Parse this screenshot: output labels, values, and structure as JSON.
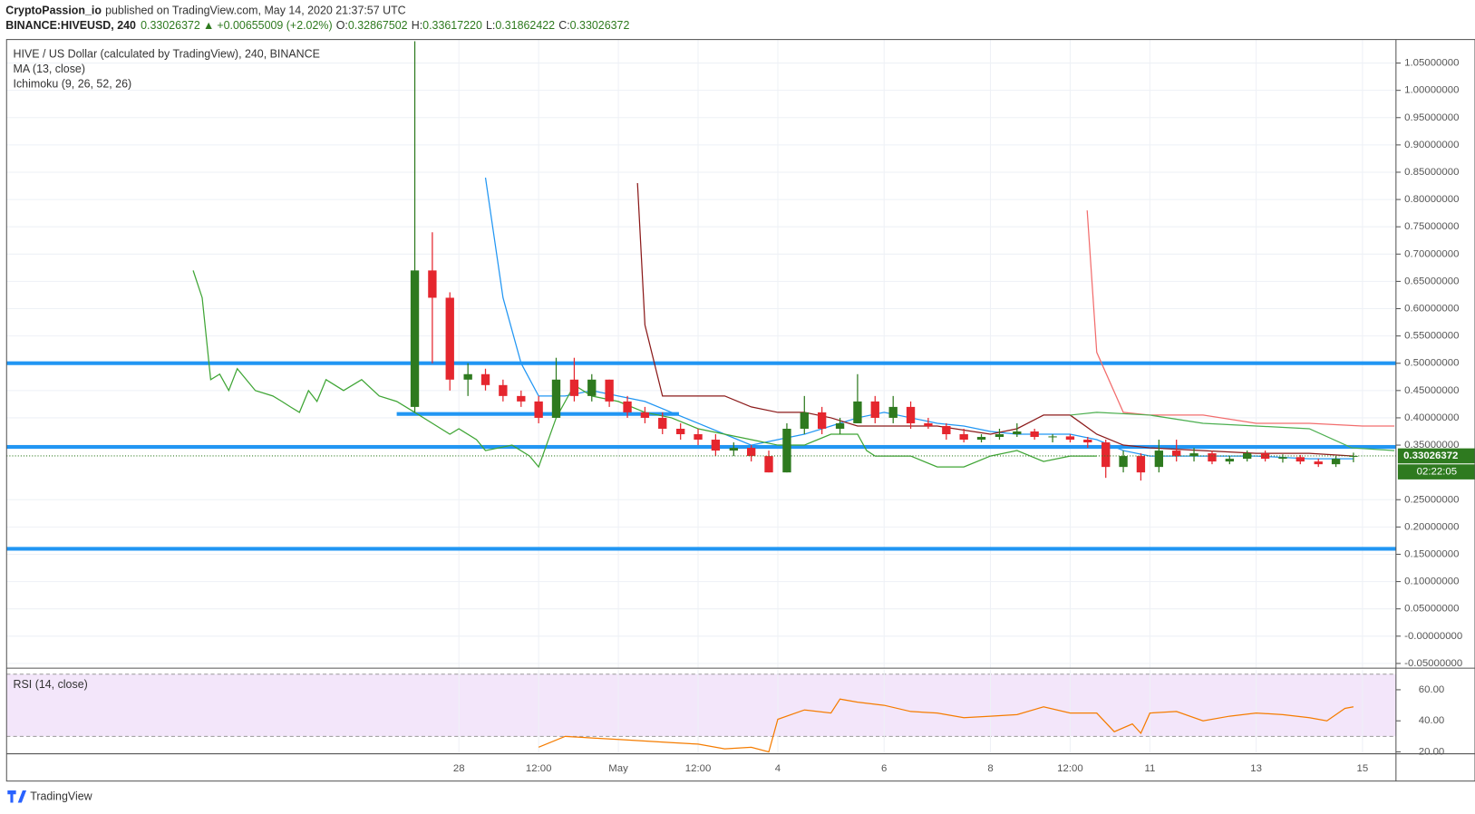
{
  "chart_data": {
    "type": "candlestick",
    "author": "CryptoPassion_io",
    "published": "published on TradingView.com, May 14, 2020 21:37:57 UTC",
    "quote": {
      "symbol": "BINANCE:HIVEUSD, 240",
      "last": "0.33026372",
      "arrow": "▲",
      "change": "+0.00655009 (+2.02%)",
      "ohlc": [
        {
          "key": "O:",
          "value": "0.32867502"
        },
        {
          "key": "H:",
          "value": "0.33617220"
        },
        {
          "key": "L:",
          "value": "0.31862422"
        },
        {
          "key": "C:",
          "value": "0.33026372"
        }
      ]
    },
    "title": "HIVE / US Dollar (calculated by TradingView), 240, BINANCE",
    "indicators": [
      "MA (13, close)",
      "Ichimoku (9, 26, 52, 26)"
    ],
    "up_color": "#2e7a1f",
    "down_color": "#e5262e",
    "countdown": "02:22:05",
    "xlim": [
      -8.51,
      17.63
    ],
    "xticks": [
      {
        "value": 0,
        "label": "28"
      },
      {
        "value": 1.5,
        "label": "12:00"
      },
      {
        "value": 3,
        "label": "May"
      },
      {
        "value": 4.5,
        "label": "12:00"
      },
      {
        "value": 6,
        "label": "4"
      },
      {
        "value": 8,
        "label": "6"
      },
      {
        "value": 10,
        "label": "8"
      },
      {
        "value": 11.5,
        "label": "12:00"
      },
      {
        "value": 13,
        "label": "11"
      },
      {
        "value": 15,
        "label": "13"
      },
      {
        "value": 17,
        "label": "15"
      }
    ],
    "ylim": [
      -0.0586,
      1.0931
    ],
    "yticks": [
      {
        "value": 1.05,
        "label": "1.05000000"
      },
      {
        "value": 1.0,
        "label": "1.00000000"
      },
      {
        "value": 0.95,
        "label": "0.95000000"
      },
      {
        "value": 0.9,
        "label": "0.90000000"
      },
      {
        "value": 0.85,
        "label": "0.85000000"
      },
      {
        "value": 0.8,
        "label": "0.80000000"
      },
      {
        "value": 0.75,
        "label": "0.75000000"
      },
      {
        "value": 0.7,
        "label": "0.70000000"
      },
      {
        "value": 0.65,
        "label": "0.65000000"
      },
      {
        "value": 0.6,
        "label": "0.60000000"
      },
      {
        "value": 0.55,
        "label": "0.55000000"
      },
      {
        "value": 0.5,
        "label": "0.50000000"
      },
      {
        "value": 0.45,
        "label": "0.45000000"
      },
      {
        "value": 0.4,
        "label": "0.40000000"
      },
      {
        "value": 0.35,
        "label": "0.35000000"
      },
      {
        "value": 0.25,
        "label": "0.25000000"
      },
      {
        "value": 0.2,
        "label": "0.20000000"
      },
      {
        "value": 0.15,
        "label": "0.15000000"
      },
      {
        "value": 0.1,
        "label": "0.10000000"
      },
      {
        "value": 0.05,
        "label": "0.05000000"
      },
      {
        "value": 0,
        "label": "-0.00000000"
      },
      {
        "value": -0.05,
        "label": "-0.05000000"
      }
    ],
    "grid": true,
    "candles": [
      {
        "x": -0.83,
        "open": 0.42,
        "high": 1.09,
        "low": 0.41,
        "close": 0.67
      },
      {
        "x": -0.5,
        "open": 0.67,
        "high": 0.74,
        "low": 0.5,
        "close": 0.62
      },
      {
        "x": -0.17,
        "open": 0.62,
        "high": 0.63,
        "low": 0.45,
        "close": 0.47
      },
      {
        "x": 0.17,
        "open": 0.47,
        "high": 0.5,
        "low": 0.44,
        "close": 0.48
      },
      {
        "x": 0.5,
        "open": 0.48,
        "high": 0.49,
        "low": 0.45,
        "close": 0.46
      },
      {
        "x": 0.83,
        "open": 0.46,
        "high": 0.47,
        "low": 0.43,
        "close": 0.44
      },
      {
        "x": 1.17,
        "open": 0.44,
        "high": 0.45,
        "low": 0.42,
        "close": 0.43
      },
      {
        "x": 1.5,
        "open": 0.43,
        "high": 0.44,
        "low": 0.39,
        "close": 0.4
      },
      {
        "x": 1.83,
        "open": 0.4,
        "high": 0.51,
        "low": 0.4,
        "close": 0.47
      },
      {
        "x": 2.17,
        "open": 0.47,
        "high": 0.51,
        "low": 0.43,
        "close": 0.44
      },
      {
        "x": 2.5,
        "open": 0.44,
        "high": 0.48,
        "low": 0.43,
        "close": 0.47
      },
      {
        "x": 2.83,
        "open": 0.47,
        "high": 0.47,
        "low": 0.42,
        "close": 0.43
      },
      {
        "x": 3.17,
        "open": 0.43,
        "high": 0.44,
        "low": 0.4,
        "close": 0.41
      },
      {
        "x": 3.5,
        "open": 0.41,
        "high": 0.42,
        "low": 0.39,
        "close": 0.4
      },
      {
        "x": 3.83,
        "open": 0.4,
        "high": 0.41,
        "low": 0.37,
        "close": 0.38
      },
      {
        "x": 4.17,
        "open": 0.38,
        "high": 0.39,
        "low": 0.36,
        "close": 0.37
      },
      {
        "x": 4.5,
        "open": 0.37,
        "high": 0.38,
        "low": 0.35,
        "close": 0.36
      },
      {
        "x": 4.83,
        "open": 0.36,
        "high": 0.37,
        "low": 0.33,
        "close": 0.34
      },
      {
        "x": 5.17,
        "open": 0.34,
        "high": 0.355,
        "low": 0.33,
        "close": 0.345
      },
      {
        "x": 5.5,
        "open": 0.345,
        "high": 0.35,
        "low": 0.32,
        "close": 0.33
      },
      {
        "x": 5.83,
        "open": 0.33,
        "high": 0.34,
        "low": 0.3,
        "close": 0.3
      },
      {
        "x": 6.17,
        "open": 0.3,
        "high": 0.39,
        "low": 0.3,
        "close": 0.38
      },
      {
        "x": 6.5,
        "open": 0.38,
        "high": 0.44,
        "low": 0.37,
        "close": 0.41
      },
      {
        "x": 6.83,
        "open": 0.41,
        "high": 0.42,
        "low": 0.37,
        "close": 0.38
      },
      {
        "x": 7.17,
        "open": 0.38,
        "high": 0.4,
        "low": 0.37,
        "close": 0.39
      },
      {
        "x": 7.5,
        "open": 0.39,
        "high": 0.48,
        "low": 0.39,
        "close": 0.43
      },
      {
        "x": 7.83,
        "open": 0.43,
        "high": 0.44,
        "low": 0.39,
        "close": 0.4
      },
      {
        "x": 8.17,
        "open": 0.4,
        "high": 0.44,
        "low": 0.39,
        "close": 0.42
      },
      {
        "x": 8.5,
        "open": 0.42,
        "high": 0.43,
        "low": 0.38,
        "close": 0.39
      },
      {
        "x": 8.83,
        "open": 0.39,
        "high": 0.4,
        "low": 0.38,
        "close": 0.385
      },
      {
        "x": 9.17,
        "open": 0.385,
        "high": 0.39,
        "low": 0.36,
        "close": 0.37
      },
      {
        "x": 9.5,
        "open": 0.37,
        "high": 0.38,
        "low": 0.355,
        "close": 0.36
      },
      {
        "x": 9.83,
        "open": 0.36,
        "high": 0.37,
        "low": 0.355,
        "close": 0.365
      },
      {
        "x": 10.17,
        "open": 0.365,
        "high": 0.38,
        "low": 0.36,
        "close": 0.37
      },
      {
        "x": 10.5,
        "open": 0.37,
        "high": 0.39,
        "low": 0.365,
        "close": 0.375
      },
      {
        "x": 10.83,
        "open": 0.375,
        "high": 0.38,
        "low": 0.36,
        "close": 0.365
      },
      {
        "x": 11.17,
        "open": 0.365,
        "high": 0.37,
        "low": 0.355,
        "close": 0.366
      },
      {
        "x": 11.5,
        "open": 0.366,
        "high": 0.37,
        "low": 0.355,
        "close": 0.36
      },
      {
        "x": 11.83,
        "open": 0.36,
        "high": 0.365,
        "low": 0.345,
        "close": 0.355
      },
      {
        "x": 12.17,
        "open": 0.355,
        "high": 0.36,
        "low": 0.29,
        "close": 0.31
      },
      {
        "x": 12.5,
        "open": 0.31,
        "high": 0.34,
        "low": 0.3,
        "close": 0.33
      },
      {
        "x": 12.83,
        "open": 0.33,
        "high": 0.335,
        "low": 0.285,
        "close": 0.3
      },
      {
        "x": 13.17,
        "open": 0.31,
        "high": 0.36,
        "low": 0.3,
        "close": 0.34
      },
      {
        "x": 13.5,
        "open": 0.34,
        "high": 0.36,
        "low": 0.32,
        "close": 0.33
      },
      {
        "x": 13.83,
        "open": 0.33,
        "high": 0.345,
        "low": 0.32,
        "close": 0.335
      },
      {
        "x": 14.17,
        "open": 0.335,
        "high": 0.34,
        "low": 0.315,
        "close": 0.32
      },
      {
        "x": 14.5,
        "open": 0.32,
        "high": 0.33,
        "low": 0.315,
        "close": 0.325
      },
      {
        "x": 14.83,
        "open": 0.325,
        "high": 0.34,
        "low": 0.32,
        "close": 0.335
      },
      {
        "x": 15.17,
        "open": 0.335,
        "high": 0.34,
        "low": 0.32,
        "close": 0.325
      },
      {
        "x": 15.5,
        "open": 0.325,
        "high": 0.333,
        "low": 0.318,
        "close": 0.328
      },
      {
        "x": 15.83,
        "open": 0.328,
        "high": 0.332,
        "low": 0.315,
        "close": 0.32
      },
      {
        "x": 16.17,
        "open": 0.32,
        "high": 0.325,
        "low": 0.31,
        "close": 0.315
      },
      {
        "x": 16.5,
        "open": 0.315,
        "high": 0.33,
        "low": 0.31,
        "close": 0.325
      },
      {
        "x": 16.83,
        "open": 0.32867502,
        "high": 0.3361722,
        "low": 0.31862422,
        "close": 0.33026372
      }
    ],
    "series": [
      {
        "color": "#2196f3",
        "x": [
          0.5,
          0.83,
          1.17,
          1.5,
          2,
          2.5,
          3,
          3.5,
          4,
          4.5,
          5,
          5.5,
          6,
          6.5,
          7,
          7.5,
          8,
          8.5,
          9,
          9.5,
          10,
          10.5,
          11,
          11.5,
          12,
          12.5,
          13,
          13.5,
          14,
          15,
          16,
          16.83
        ],
        "values": [
          0.84,
          0.62,
          0.5,
          0.44,
          0.44,
          0.45,
          0.44,
          0.43,
          0.41,
          0.39,
          0.37,
          0.35,
          0.36,
          0.37,
          0.385,
          0.4,
          0.41,
          0.4,
          0.39,
          0.385,
          0.375,
          0.37,
          0.37,
          0.37,
          0.36,
          0.34,
          0.33,
          0.33,
          0.33,
          0.33,
          0.325,
          0.325
        ]
      },
      {
        "color": "#3fa535",
        "x": [
          -5,
          -4.83,
          -4.67,
          -4.5,
          -4.33,
          -4.17,
          -3.83,
          -3.5,
          -3.33,
          -3.17,
          -3,
          -2.83,
          -2.67,
          -2.5,
          -2.17,
          -2,
          -1.83,
          -1.5,
          -1.17,
          -0.83,
          -0.5,
          -0.17,
          0,
          0.33,
          0.5,
          1,
          1.33,
          1.5,
          1.83,
          2.17,
          2.5,
          3,
          3.5,
          4,
          4.5,
          5,
          5.5,
          6,
          6.5,
          7,
          7.5,
          7.67,
          7.83,
          8.5,
          9,
          9.5,
          10,
          10.5,
          11,
          11.5,
          12
        ],
        "values": [
          0.67,
          0.62,
          0.47,
          0.48,
          0.45,
          0.49,
          0.45,
          0.44,
          0.43,
          0.42,
          0.41,
          0.45,
          0.43,
          0.47,
          0.45,
          0.46,
          0.47,
          0.44,
          0.43,
          0.41,
          0.39,
          0.37,
          0.38,
          0.36,
          0.34,
          0.35,
          0.33,
          0.31,
          0.4,
          0.46,
          0.44,
          0.43,
          0.41,
          0.4,
          0.38,
          0.37,
          0.36,
          0.35,
          0.35,
          0.37,
          0.37,
          0.34,
          0.33,
          0.33,
          0.31,
          0.31,
          0.33,
          0.34,
          0.32,
          0.33,
          0.33
        ]
      },
      {
        "color": "#8b1a1a",
        "x": [
          3.36,
          3.5,
          3.83,
          4.5,
          5,
          5.5,
          6,
          6.5,
          7,
          7.5,
          8,
          9,
          10,
          10.5,
          11,
          11.5,
          12,
          12.5,
          13,
          14,
          15,
          16,
          16.83
        ],
        "values": [
          0.83,
          0.57,
          0.44,
          0.44,
          0.44,
          0.42,
          0.41,
          0.41,
          0.4,
          0.385,
          0.385,
          0.385,
          0.37,
          0.38,
          0.405,
          0.405,
          0.37,
          0.35,
          0.345,
          0.34,
          0.335,
          0.335,
          0.33
        ]
      },
      {
        "color": "#f26d6d",
        "x": [
          11.82,
          12,
          12.5,
          13,
          14,
          15,
          16,
          17,
          17.6
        ],
        "values": [
          0.78,
          0.52,
          0.41,
          0.405,
          0.405,
          0.39,
          0.39,
          0.385,
          0.385
        ]
      },
      {
        "color": "#4caf50",
        "x": [
          11.5,
          12,
          13,
          14,
          15,
          16,
          16.8,
          17.6
        ],
        "values": [
          0.405,
          0.41,
          0.405,
          0.39,
          0.385,
          0.38,
          0.345,
          0.34
        ]
      }
    ],
    "levels": [
      {
        "value": 0.5
      },
      {
        "value": 0.3466
      },
      {
        "value": 0.16
      },
      {
        "value": 0.407,
        "x": [
          -1.17,
          4.14
        ]
      }
    ],
    "level_color": "#2196f3",
    "rsi": {
      "title": "RSI (14, close)",
      "color": "#f57c00",
      "ylim": [
        19.4,
        72.7
      ],
      "band": [
        30,
        70
      ],
      "yticks": [
        {
          "value": 60,
          "label": "60.00"
        },
        {
          "value": 40,
          "label": "40.00"
        },
        {
          "value": 20,
          "label": "20.00"
        }
      ],
      "x": [
        1.5,
        2,
        2.5,
        3,
        3.5,
        4,
        4.5,
        5,
        5.5,
        5.83,
        6,
        6.5,
        7,
        7.17,
        7.5,
        8,
        8.5,
        9,
        9.5,
        10,
        10.5,
        11,
        11.5,
        12,
        12.33,
        12.67,
        12.83,
        13,
        13.5,
        14,
        14.5,
        15,
        15.5,
        16,
        16.33,
        16.67,
        16.83
      ],
      "values": [
        23,
        30,
        29,
        28,
        27,
        26,
        25,
        22,
        23,
        20,
        41,
        47,
        45,
        54,
        52,
        50,
        46,
        45,
        42,
        43,
        44,
        49,
        45,
        45,
        33,
        38,
        32,
        45,
        46,
        40,
        43,
        45,
        44,
        42,
        40,
        48,
        49
      ]
    },
    "brand": "TradingView"
  }
}
